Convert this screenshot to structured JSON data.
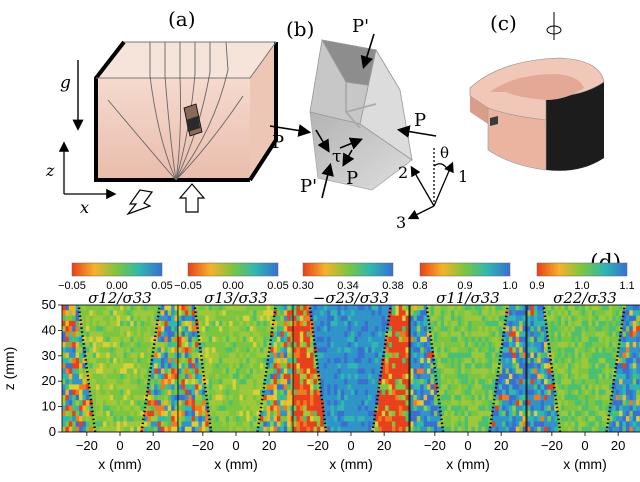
{
  "panels": {
    "a": {
      "label": "(a)",
      "g": "g",
      "z": "z",
      "x": "x"
    },
    "b": {
      "label": "(b)",
      "P_prime_top": "P'",
      "P_prime_bottom": "P'",
      "P_left": "P",
      "P_right": "P",
      "P_mid": "P",
      "tau": "τ",
      "axis1": "1",
      "axis2": "2",
      "axis3": "3",
      "theta": "θ"
    },
    "c": {
      "label": "(c)"
    },
    "d": {
      "label": "(d)"
    }
  },
  "chart_data": [
    {
      "type": "heatmap",
      "title": "σ12/σ33",
      "colorbar_ticks": [
        "−0.05",
        "0.00",
        "0.05"
      ],
      "clim": [
        -0.05,
        0.05
      ],
      "xlabel": "x (mm)",
      "ylabel": "z (mm)",
      "xticks": [
        "−20",
        "0",
        "20"
      ],
      "yticks": [
        "0",
        "10",
        "20",
        "30",
        "40",
        "50"
      ],
      "xlim": [
        -35,
        35
      ],
      "ylim": [
        0,
        50
      ],
      "base": 0.35
    },
    {
      "type": "heatmap",
      "title": "σ13/σ33",
      "colorbar_ticks": [
        "−0.05",
        "0.00",
        "0.05"
      ],
      "clim": [
        -0.05,
        0.05
      ],
      "xlabel": "x (mm)",
      "xticks": [
        "−20",
        "0",
        "20"
      ],
      "xlim": [
        -35,
        35
      ],
      "ylim": [
        0,
        50
      ],
      "base": 0.5
    },
    {
      "type": "heatmap",
      "title": "−σ23/σ33",
      "colorbar_ticks": [
        "0.30",
        "0.34",
        "0.38"
      ],
      "clim": [
        0.3,
        0.38
      ],
      "xlabel": "x (mm)",
      "xticks": [
        "−20",
        "0",
        "20"
      ],
      "xlim": [
        -35,
        35
      ],
      "ylim": [
        0,
        50
      ],
      "base": 0.15
    },
    {
      "type": "heatmap",
      "title": "σ11/σ33",
      "colorbar_ticks": [
        "0.8",
        "0.9",
        "1.0"
      ],
      "clim": [
        0.8,
        1.0
      ],
      "xlabel": "x (mm)",
      "xticks": [
        "−20",
        "0",
        "20"
      ],
      "xlim": [
        -35,
        35
      ],
      "ylim": [
        0,
        50
      ],
      "base": 0.7
    },
    {
      "type": "heatmap",
      "title": "σ22/σ33",
      "colorbar_ticks": [
        "0.9",
        "1.0",
        "1.1"
      ],
      "clim": [
        0.9,
        1.1
      ],
      "xlabel": "x (mm)",
      "xticks": [
        "−20",
        "0",
        "20"
      ],
      "xlim": [
        -35,
        35
      ],
      "ylim": [
        0,
        50
      ],
      "base": 0.6
    }
  ],
  "shear_band": {
    "left_bottom_x": -15,
    "left_top_x": -25,
    "right_bottom_x": 13,
    "right_top_x": 24
  }
}
